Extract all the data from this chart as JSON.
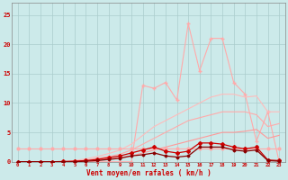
{
  "x": [
    0,
    1,
    2,
    3,
    4,
    5,
    6,
    7,
    8,
    9,
    10,
    11,
    12,
    13,
    14,
    15,
    16,
    17,
    18,
    19,
    20,
    21,
    22,
    23
  ],
  "line_flat_y": [
    2.2,
    2.2,
    2.2,
    2.2,
    2.2,
    2.2,
    2.2,
    2.2,
    2.2,
    2.2,
    2.2,
    2.2,
    2.2,
    2.2,
    2.2,
    2.2,
    2.2,
    2.2,
    2.2,
    2.2,
    2.2,
    2.2,
    2.2,
    2.2
  ],
  "line_upper_y": [
    0,
    0,
    0,
    0,
    0,
    0.2,
    0.5,
    0.9,
    1.4,
    2.0,
    3.0,
    4.5,
    6.0,
    7.0,
    8.0,
    9.0,
    10.0,
    11.0,
    11.5,
    11.5,
    11.0,
    11.2,
    8.5,
    8.5
  ],
  "line_mid_y": [
    0,
    0,
    0,
    0,
    0,
    0.1,
    0.3,
    0.6,
    0.9,
    1.3,
    2.0,
    3.0,
    4.0,
    5.0,
    6.0,
    7.0,
    7.5,
    8.0,
    8.5,
    8.5,
    8.5,
    8.0,
    6.0,
    6.5
  ],
  "line_lower_y": [
    0,
    0,
    0,
    0,
    0,
    0.05,
    0.15,
    0.3,
    0.5,
    0.7,
    1.0,
    1.5,
    2.0,
    2.5,
    3.0,
    3.5,
    4.0,
    4.5,
    5.0,
    5.0,
    5.2,
    5.5,
    4.0,
    4.5
  ],
  "line_dark1_y": [
    0,
    0,
    0,
    0,
    0.05,
    0.1,
    0.2,
    0.4,
    0.7,
    1.0,
    1.5,
    2.0,
    2.5,
    1.8,
    1.5,
    1.8,
    3.2,
    3.2,
    3.0,
    2.5,
    2.2,
    2.5,
    0.3,
    0.2
  ],
  "line_dark2_y": [
    0,
    0,
    0,
    0,
    0,
    0,
    0.1,
    0.2,
    0.4,
    0.6,
    1.0,
    1.2,
    1.5,
    1.0,
    0.8,
    1.0,
    2.5,
    2.5,
    2.5,
    2.0,
    1.8,
    2.0,
    0.2,
    0.1
  ],
  "line_spike_y": [
    0,
    0,
    0,
    0,
    0,
    0,
    0,
    0,
    0,
    0,
    0,
    13.0,
    12.5,
    13.5,
    10.5,
    23.5,
    15.5,
    21.0,
    21.0,
    13.5,
    11.5,
    3.5,
    8.5,
    0
  ],
  "bg_color": "#cceaea",
  "grid_color": "#aacccc",
  "col_flat": "#ffaaaa",
  "col_upper": "#ffaaaa",
  "col_mid": "#ff8888",
  "col_lower": "#ff8888",
  "col_dark1": "#cc0000",
  "col_dark2": "#cc0000",
  "col_spike": "#ffaaaa",
  "xlabel": "Vent moyen/en rafales ( km/h )",
  "yticks": [
    0,
    5,
    10,
    15,
    20,
    25
  ],
  "xlim": [
    -0.5,
    23.5
  ],
  "ylim": [
    0,
    27
  ],
  "tick_color": "#cc0000",
  "label_color": "#cc0000"
}
